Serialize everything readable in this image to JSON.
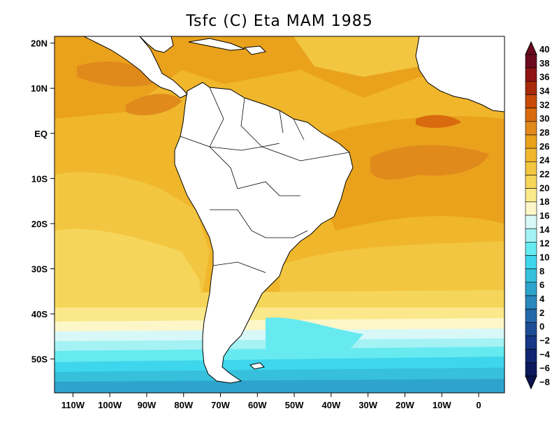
{
  "title": "Tsfc (C) Eta MAM 1985",
  "map": {
    "lon_range": [
      -115,
      7
    ],
    "lat_range": [
      -57.5,
      21.5
    ],
    "x_ticks": [
      {
        "lon": -110,
        "label": "110W"
      },
      {
        "lon": -100,
        "label": "100W"
      },
      {
        "lon": -90,
        "label": "90W"
      },
      {
        "lon": -80,
        "label": "80W"
      },
      {
        "lon": -70,
        "label": "70W"
      },
      {
        "lon": -60,
        "label": "60W"
      },
      {
        "lon": -50,
        "label": "50W"
      },
      {
        "lon": -40,
        "label": "40W"
      },
      {
        "lon": -30,
        "label": "30W"
      },
      {
        "lon": -20,
        "label": "20W"
      },
      {
        "lon": -10,
        "label": "10W"
      },
      {
        "lon": 0,
        "label": "0"
      }
    ],
    "y_ticks": [
      {
        "lat": 20,
        "label": "20N"
      },
      {
        "lat": 10,
        "label": "10N"
      },
      {
        "lat": 0,
        "label": "EQ"
      },
      {
        "lat": -10,
        "label": "10S"
      },
      {
        "lat": -20,
        "label": "20S"
      },
      {
        "lat": -30,
        "label": "30S"
      },
      {
        "lat": -40,
        "label": "40S"
      },
      {
        "lat": -50,
        "label": "50S"
      }
    ]
  },
  "colorbar": {
    "labels": [
      "40",
      "38",
      "36",
      "34",
      "32",
      "30",
      "28",
      "26",
      "24",
      "22",
      "20",
      "18",
      "16",
      "14",
      "12",
      "10",
      "8",
      "6",
      "4",
      "2",
      "0",
      "−2",
      "−4",
      "−6",
      "−8"
    ],
    "colors": [
      "#6b0a1e",
      "#8f1414",
      "#a82a08",
      "#c84a06",
      "#d96a0e",
      "#e08a1c",
      "#eaa21c",
      "#f0b62c",
      "#f2c640",
      "#f5d65a",
      "#fae88a",
      "#fdf6c8",
      "#d8f8f8",
      "#a4f2f4",
      "#66eaf0",
      "#3ed6ec",
      "#36c0dc",
      "#2ea4cc",
      "#2a88bc",
      "#2468a8",
      "#1c4e96",
      "#163886",
      "#102670",
      "#0c1a5c"
    ]
  }
}
